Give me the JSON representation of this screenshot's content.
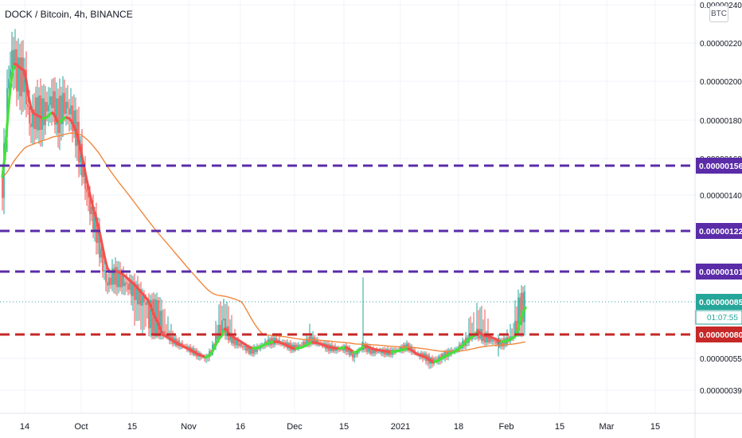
{
  "title": "DOCK / Bitcoin, 4h, BINANCE",
  "scale_badge": "BTC",
  "chart_data": {
    "type": "line",
    "x_ticks": [
      "14",
      "Oct",
      "15",
      "Nov",
      "16",
      "Dec",
      "15",
      "2021",
      "18",
      "Feb",
      "15",
      "Mar",
      "15"
    ],
    "y_ticks": [
      "0.00000240",
      "0.00000220",
      "0.00000200",
      "0.00000180",
      "0.00000160",
      "0.00000140",
      "0.00000055",
      "0.00000039"
    ],
    "ylim": [
      3e-07,
      2.4e-06
    ],
    "grid": true,
    "last_price": {
      "label": "0.00000085",
      "color": "#26a69a"
    },
    "countdown": {
      "label": "01:07:55",
      "color": "#26a69a"
    },
    "horizontal_levels": [
      {
        "label": "0.00000156",
        "value": 1.56e-06,
        "color": "#5b2ca8"
      },
      {
        "label": "0.00000122",
        "value": 1.22e-06,
        "color": "#5b2ca8"
      },
      {
        "label": "0.00000101",
        "value": 1.01e-06,
        "color": "#5b2ca8"
      },
      {
        "label": "0.00000080",
        "value": 8e-07,
        "color": "#c62828"
      }
    ],
    "series": [
      {
        "type": "candlestick",
        "up_color": "#26a69a",
        "down_color": "#ef5350"
      },
      {
        "type": "line",
        "color": "#f0883e"
      },
      {
        "type": "line",
        "up_color": "#46e03a",
        "down_color": "#ef5350"
      }
    ]
  }
}
